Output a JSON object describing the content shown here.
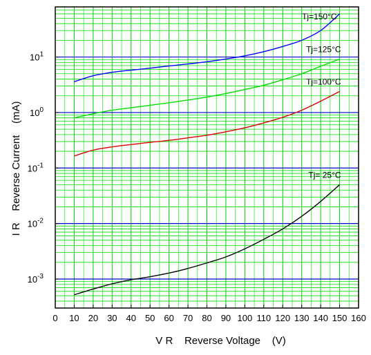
{
  "chart_data": {
    "type": "line",
    "title": "",
    "xlabel": "V R    Reverse Voltage    (V)",
    "ylabel": "I R    Reverse Current    (mA)",
    "xlim": [
      0,
      160
    ],
    "ylim": [
      0.0003,
      80
    ],
    "yscale": "log",
    "grid": true,
    "x_ticks": [
      "0",
      "10",
      "20",
      "30",
      "40",
      "50",
      "60",
      "70",
      "80",
      "90",
      "100",
      "110",
      "120",
      "130",
      "140",
      "150",
      "160"
    ],
    "y_ticks": [
      {
        "base": "10",
        "exp": "-3",
        "value": 0.001
      },
      {
        "base": "10",
        "exp": "-2",
        "value": 0.01
      },
      {
        "base": "10",
        "exp": "-1",
        "value": 0.1
      },
      {
        "base": "10",
        "exp": "0",
        "value": 1
      },
      {
        "base": "10",
        "exp": "1",
        "value": 10
      }
    ],
    "series": [
      {
        "name": "Tj=150°C",
        "color": "#0000ff",
        "x": [
          10,
          20,
          30,
          40,
          50,
          60,
          70,
          80,
          90,
          100,
          110,
          120,
          130,
          140,
          150
        ],
        "y": [
          3.6,
          4.6,
          5.3,
          5.8,
          6.3,
          6.9,
          7.5,
          8.2,
          9.2,
          10.5,
          12.5,
          15.5,
          20,
          30,
          60
        ]
      },
      {
        "name": "Tj=125°C",
        "color": "#00dd00",
        "x": [
          10,
          20,
          30,
          40,
          50,
          60,
          70,
          80,
          90,
          100,
          110,
          120,
          130,
          140,
          150
        ],
        "y": [
          0.8,
          0.95,
          1.1,
          1.22,
          1.35,
          1.5,
          1.68,
          1.9,
          2.2,
          2.6,
          3.1,
          3.9,
          5.0,
          6.8,
          9.2
        ]
      },
      {
        "name": "Tj=100°C",
        "color": "#dd0000",
        "x": [
          10,
          20,
          30,
          40,
          50,
          60,
          70,
          80,
          90,
          100,
          110,
          120,
          130,
          140,
          150
        ],
        "y": [
          0.165,
          0.21,
          0.24,
          0.265,
          0.29,
          0.315,
          0.35,
          0.39,
          0.45,
          0.53,
          0.65,
          0.82,
          1.1,
          1.6,
          2.4
        ]
      },
      {
        "name": "Tj= 25°C",
        "color": "#000000",
        "x": [
          10,
          20,
          30,
          40,
          50,
          60,
          70,
          80,
          90,
          100,
          110,
          120,
          130,
          140,
          150
        ],
        "y": [
          0.00052,
          0.00066,
          0.00082,
          0.00097,
          0.0011,
          0.00128,
          0.00155,
          0.00195,
          0.0025,
          0.0035,
          0.0052,
          0.008,
          0.0135,
          0.025,
          0.05
        ]
      }
    ]
  }
}
